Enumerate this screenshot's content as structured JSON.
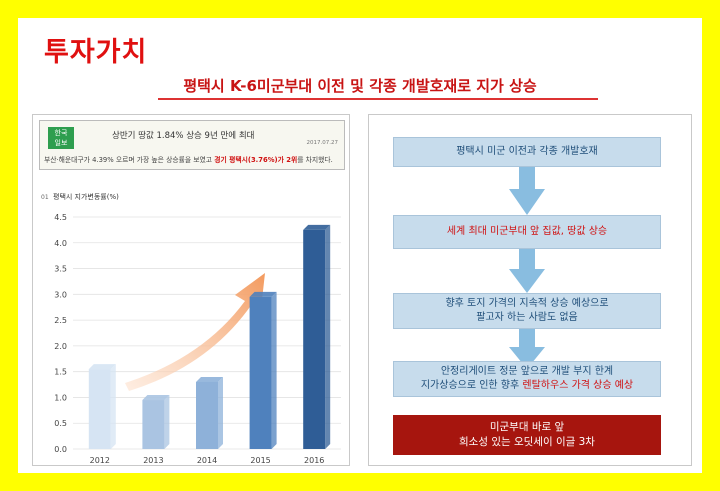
{
  "title": "투자가치",
  "subtitle": "평택시 K-6미군부대 이전 및 각종 개발호재로 지가 상승",
  "news": {
    "logo_line1": "한국",
    "logo_line2": "일보",
    "headline": "상반기 땅값 1.84% 상승 9년 만에 최대",
    "date": "2017.07.27",
    "body_plain": "부산·해운대구가 4.39% 오르며 가장 높은 상승률을 보였고 ",
    "body_highlight": "경기 평택시(3.76%)가 2위",
    "body_tail": "를 차지했다."
  },
  "chart_data": {
    "type": "bar",
    "title": "평택시 지가변동률(%)",
    "index": "01",
    "categories": [
      "2012",
      "2013",
      "2014",
      "2015",
      "2016"
    ],
    "values": [
      1.55,
      0.95,
      1.3,
      2.95,
      4.25
    ],
    "ylim": [
      0,
      4.5
    ],
    "yticks": [
      "0.0",
      "0.5",
      "1.0",
      "1.5",
      "2.0",
      "2.5",
      "3.0",
      "3.5",
      "4.0",
      "4.5"
    ],
    "colors": [
      "#d6e4f3",
      "#aac4e2",
      "#8eb1d9",
      "#4f81bd",
      "#2f5d96"
    ],
    "trend_arrow_color": "#f4a874"
  },
  "flow": {
    "step1": "평택시 미군 이전과 각종 개발호재",
    "step2": "세계 최대 미군부대 앞 집값, 땅값 상승",
    "step3_line1": "향후 토지 가격의 지속적 상승 예상으로",
    "step3_line2": "팔고자 하는 사람도 없음",
    "step4_line1": "안정리게이트 정문 앞으로 개발 부지 한계",
    "step4_line2_plain": "지가상승으로 인한 향후 ",
    "step4_line2_highlight": "렌탈하우스 가격 상승 예상",
    "final_line1": "미군부대 바로 앞",
    "final_line2": "희소성 있는 오딧세이 이글 3차"
  }
}
